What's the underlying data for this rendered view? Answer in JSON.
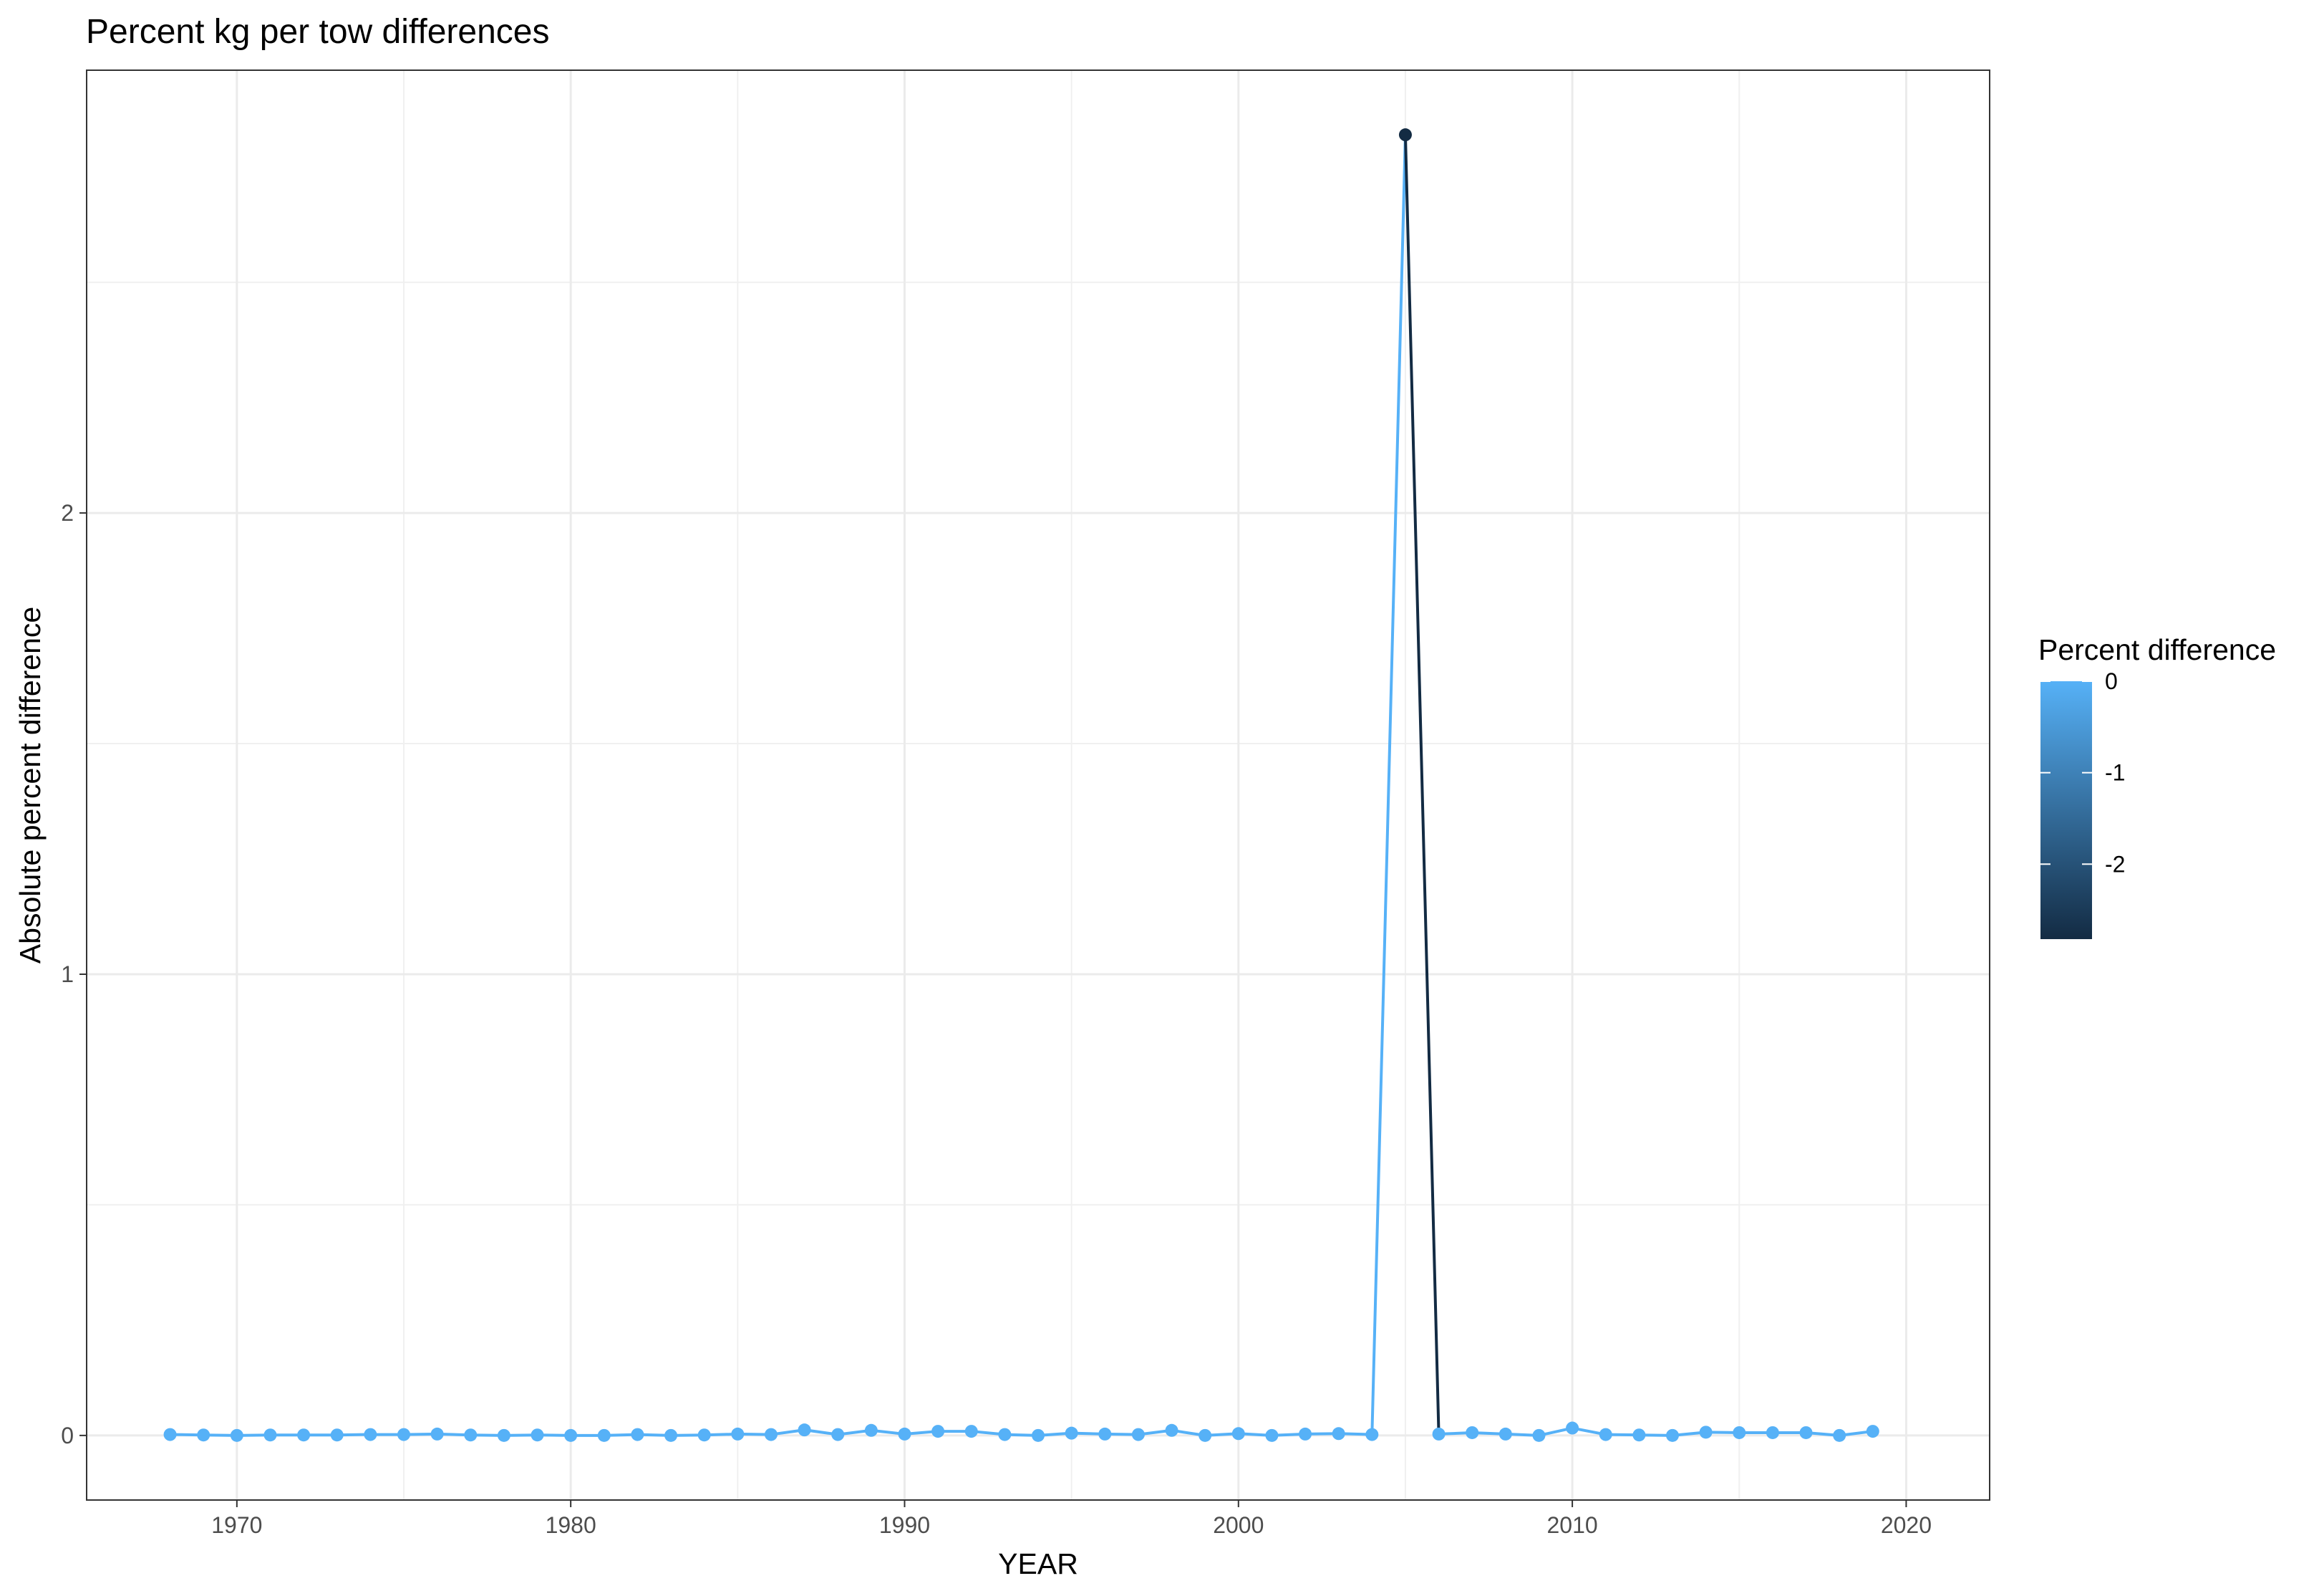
{
  "chart_data": {
    "type": "line",
    "title": "Percent kg per tow differences",
    "xlabel": "YEAR",
    "ylabel": "Absolute percent difference",
    "xlim": [
      1965.5,
      2022.5
    ],
    "ylim": [
      -0.14,
      2.96
    ],
    "x_ticks": [
      1970,
      1980,
      1990,
      2000,
      2010,
      2020
    ],
    "x_tick_labels": [
      "1970",
      "1980",
      "1990",
      "2000",
      "2010",
      "2020"
    ],
    "y_ticks": [
      0,
      1,
      2
    ],
    "y_tick_labels": [
      "0",
      "1",
      "2"
    ],
    "grid": true,
    "legend": {
      "title": "Percent difference",
      "position": "right",
      "type": "colorbar",
      "range": [
        -2.82,
        0
      ],
      "low_color": "#132b43",
      "high_color": "#56b1f7",
      "breaks": [
        0,
        -1,
        -2
      ],
      "labels": [
        "0",
        "-1",
        "-2"
      ]
    },
    "x": [
      1968,
      1969,
      1970,
      1971,
      1972,
      1973,
      1974,
      1975,
      1976,
      1977,
      1978,
      1979,
      1980,
      1981,
      1982,
      1983,
      1984,
      1985,
      1986,
      1987,
      1988,
      1989,
      1990,
      1991,
      1992,
      1993,
      1994,
      1995,
      1996,
      1997,
      1998,
      1999,
      2000,
      2001,
      2002,
      2003,
      2004,
      2005,
      2006,
      2007,
      2008,
      2009,
      2010,
      2011,
      2012,
      2013,
      2014,
      2015,
      2016,
      2017,
      2018,
      2019
    ],
    "y": [
      0.002,
      0.001,
      0.0,
      0.001,
      0.001,
      0.001,
      0.002,
      0.002,
      0.003,
      0.001,
      0.0,
      0.001,
      0.0,
      0.0,
      0.002,
      0.0,
      0.001,
      0.003,
      0.002,
      0.012,
      0.002,
      0.011,
      0.003,
      0.009,
      0.009,
      0.002,
      0.0,
      0.005,
      0.003,
      0.002,
      0.011,
      0.0,
      0.004,
      0.0,
      0.003,
      0.004,
      0.002,
      2.82,
      0.003,
      0.006,
      0.003,
      0.0,
      0.016,
      0.002,
      0.001,
      0.0,
      0.007,
      0.006,
      0.006,
      0.006,
      0.0,
      0.009
    ],
    "percent_difference": [
      0.0,
      0.0,
      0.0,
      0.0,
      0.0,
      0.0,
      0.0,
      0.0,
      0.0,
      0.0,
      0.0,
      0.0,
      0.0,
      0.0,
      0.0,
      0.0,
      0.0,
      0.0,
      0.0,
      0.0,
      0.0,
      0.0,
      0.0,
      0.0,
      0.0,
      0.0,
      0.0,
      0.0,
      0.0,
      0.0,
      0.0,
      0.0,
      0.0,
      0.0,
      0.0,
      0.0,
      0.0,
      -2.82,
      0.0,
      0.0,
      0.0,
      0.0,
      0.0,
      0.0,
      0.0,
      0.0,
      0.0,
      0.0,
      0.0,
      0.0,
      0.0,
      0.0
    ]
  }
}
